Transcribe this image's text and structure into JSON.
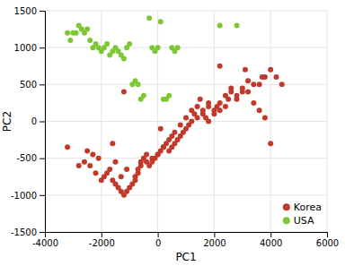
{
  "chart_data": {
    "type": "scatter",
    "xlabel": "PC1",
    "ylabel": "PC2",
    "series": [
      {
        "name": "Korea",
        "color": "#c0392b",
        "x": [
          -3200,
          -2600,
          -2400,
          -2200,
          -2000,
          -1900,
          -1800,
          -1700,
          -1600,
          -1500,
          -1400,
          -1300,
          -1200,
          -1100,
          -1000,
          -900,
          -800,
          -700,
          -600,
          -500,
          -400,
          -300,
          -200,
          -100,
          0,
          100,
          200,
          300,
          400,
          500,
          600,
          700,
          800,
          900,
          1000,
          1100,
          1200,
          1300,
          1400,
          1500,
          1600,
          1700,
          1800,
          2000,
          2100,
          2200,
          2400,
          2500,
          2600,
          2800,
          3000,
          3200,
          3400,
          3600,
          3800,
          4000,
          4200,
          4400,
          -2500,
          -2300,
          -2100,
          -1500,
          -1300,
          -1100,
          -800,
          -700,
          -600,
          -400,
          -200,
          0,
          200,
          400,
          600,
          800,
          1000,
          1200,
          1400,
          1600,
          1800,
          2000,
          2200,
          2400,
          2600,
          2800,
          3000,
          3200,
          3400,
          3600,
          3800,
          4000,
          -2800,
          -1600,
          -1200,
          100,
          500,
          1800,
          2200,
          3100,
          3700
        ],
        "values": [
          -350,
          -550,
          -600,
          -700,
          -800,
          -750,
          -700,
          -650,
          -800,
          -850,
          -900,
          -950,
          -1000,
          -950,
          -900,
          -850,
          -800,
          -700,
          -600,
          -500,
          -550,
          -600,
          -500,
          -500,
          -450,
          -400,
          -350,
          -300,
          -400,
          -350,
          -300,
          -250,
          -200,
          -150,
          -100,
          -50,
          0,
          100,
          200,
          300,
          100,
          50,
          0,
          100,
          200,
          150,
          200,
          300,
          400,
          300,
          400,
          400,
          500,
          500,
          600,
          700,
          600,
          500,
          -400,
          -450,
          -500,
          -550,
          -750,
          -650,
          -750,
          -650,
          -550,
          -450,
          -550,
          -450,
          -350,
          -250,
          -150,
          -50,
          50,
          150,
          50,
          150,
          250,
          150,
          250,
          350,
          450,
          350,
          450,
          550,
          250,
          150,
          50,
          -300,
          -600,
          -300,
          400,
          -100,
          -200,
          200,
          750,
          700,
          600
        ]
      },
      {
        "name": "USA",
        "color": "#7dc832",
        "x": [
          -3200,
          -3100,
          -3000,
          -2900,
          -2800,
          -2700,
          -2600,
          -2500,
          -2400,
          -2300,
          -2200,
          -2100,
          -2000,
          -1900,
          -1800,
          -1700,
          -1600,
          -1500,
          -1400,
          -1300,
          -1200,
          -1100,
          -1000,
          -900,
          -800,
          -700,
          -600,
          -500,
          -300,
          -200,
          -100,
          0,
          100,
          200,
          300,
          400,
          500,
          600,
          700,
          2200,
          2800
        ],
        "values": [
          1200,
          1100,
          1200,
          1200,
          1300,
          1250,
          1200,
          1250,
          1100,
          1000,
          1050,
          1000,
          950,
          1000,
          1050,
          900,
          950,
          1000,
          950,
          900,
          850,
          1000,
          1050,
          500,
          550,
          500,
          300,
          350,
          1400,
          1000,
          950,
          1000,
          1350,
          300,
          300,
          350,
          1000,
          950,
          1000,
          1300,
          1300
        ]
      }
    ],
    "xlim": [
      -4000,
      6000
    ],
    "ylim": [
      -1500,
      1500
    ],
    "xticks": [
      -4000,
      -2000,
      0,
      2000,
      4000,
      6000
    ],
    "yticks": [
      -1500,
      -1000,
      -500,
      0,
      500,
      1000,
      1500
    ],
    "grid": true,
    "legend": "lower right"
  }
}
